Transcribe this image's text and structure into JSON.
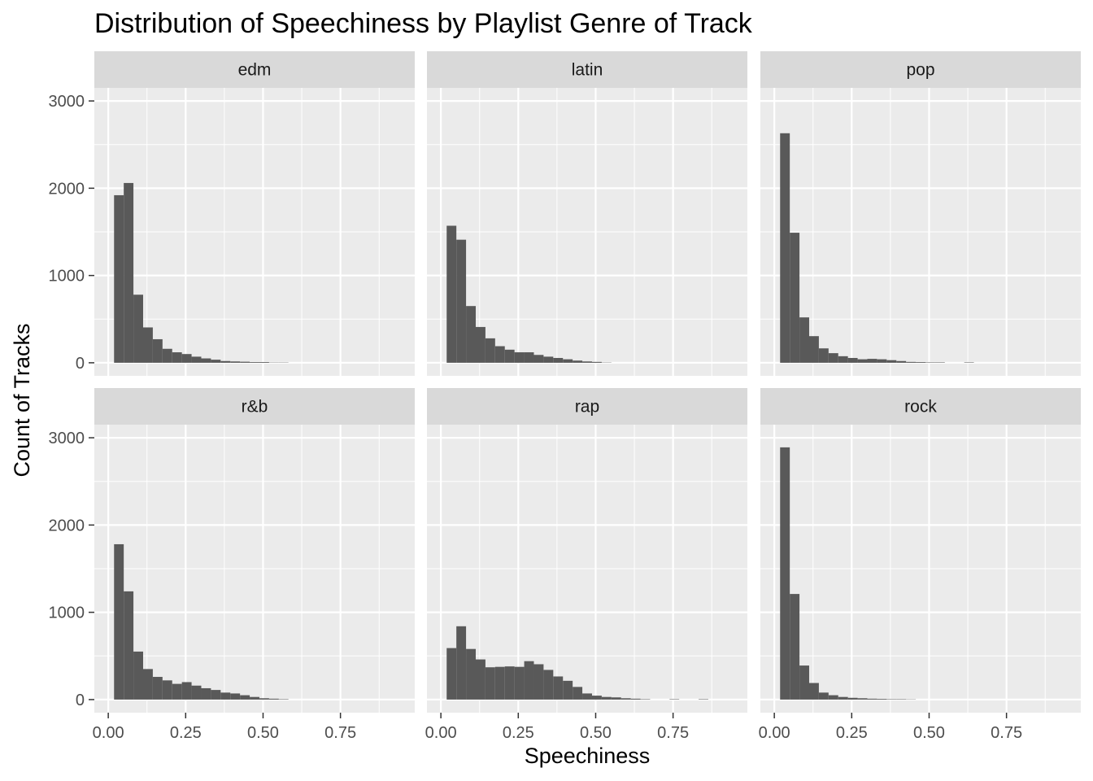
{
  "chart_data": {
    "type": "bar",
    "title": "Distribution of Speechiness by Playlist Genre of Track",
    "xlabel": "Speechiness",
    "ylabel": "Count of Tracks",
    "xlim": [
      -0.045,
      0.99
    ],
    "ylim": [
      -150,
      3150
    ],
    "x_ticks": [
      0,
      0.25,
      0.5,
      0.75
    ],
    "x_tick_labels": [
      "0.00",
      "0.25",
      "0.50",
      "0.75"
    ],
    "y_ticks": [
      0,
      1000,
      2000,
      3000
    ],
    "y_tick_labels": [
      "0",
      "1000",
      "2000",
      "3000"
    ],
    "grid": true,
    "bins": {
      "start": 0.0187,
      "width": 0.0313,
      "count": 28
    },
    "bar_color": "#595959",
    "panel_background": "#ebebeb",
    "strip_background": "#d9d9d9",
    "facets": [
      {
        "name": "edm",
        "values": [
          1920,
          2060,
          780,
          405,
          270,
          160,
          120,
          100,
          70,
          50,
          35,
          20,
          15,
          12,
          8,
          8,
          3,
          3,
          0,
          0,
          0,
          0,
          0,
          0,
          0,
          0,
          0,
          0
        ]
      },
      {
        "name": "latin",
        "values": [
          1570,
          1410,
          650,
          410,
          280,
          190,
          150,
          120,
          120,
          90,
          70,
          55,
          40,
          25,
          15,
          10,
          3,
          0,
          0,
          0,
          0,
          0,
          0,
          0,
          0,
          0,
          0,
          0
        ]
      },
      {
        "name": "pop",
        "values": [
          2630,
          1490,
          520,
          305,
          165,
          110,
          75,
          55,
          40,
          45,
          40,
          30,
          20,
          10,
          8,
          5,
          5,
          0,
          0,
          5,
          0,
          0,
          0,
          0,
          0,
          0,
          0,
          0
        ]
      },
      {
        "name": "r&b",
        "values": [
          1780,
          1240,
          550,
          350,
          260,
          220,
          180,
          200,
          160,
          130,
          110,
          80,
          70,
          50,
          30,
          15,
          10,
          5,
          0,
          0,
          0,
          0,
          0,
          0,
          0,
          0,
          0,
          0
        ]
      },
      {
        "name": "rap",
        "values": [
          590,
          840,
          580,
          460,
          370,
          375,
          380,
          375,
          440,
          405,
          340,
          265,
          215,
          145,
          70,
          45,
          30,
          25,
          15,
          10,
          5,
          0,
          0,
          5,
          0,
          0,
          5,
          0
        ]
      },
      {
        "name": "rock",
        "values": [
          2890,
          1210,
          390,
          190,
          80,
          50,
          30,
          20,
          15,
          10,
          8,
          5,
          5,
          3,
          0,
          0,
          0,
          0,
          0,
          0,
          0,
          0,
          0,
          0,
          0,
          0,
          0,
          0
        ]
      }
    ]
  }
}
